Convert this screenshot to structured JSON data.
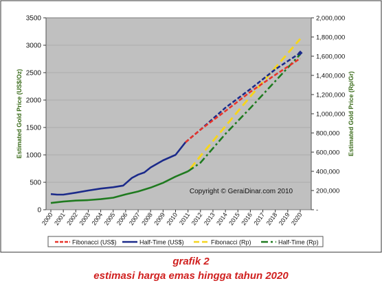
{
  "chart_data": {
    "type": "line",
    "title": "",
    "ylabel_left": "Estimated Gold Price (US$/Oz)",
    "ylabel_right": "Estimated Gold Price (Rp/Gr)",
    "ylim_left": [
      0,
      3500
    ],
    "ylim_right": [
      0,
      2000000
    ],
    "x_ticks": [
      "2000",
      "2001",
      "2002",
      "2003",
      "2004",
      "2005",
      "2006",
      "2007",
      "2008",
      "2009",
      "2010",
      "2011",
      "2012",
      "2013",
      "2014",
      "2015",
      "2016",
      "2017",
      "2018",
      "2019",
      "2020"
    ],
    "y_left_ticks": [
      "0",
      "500",
      "1000",
      "1500",
      "2000",
      "2500",
      "3000",
      "3500"
    ],
    "y_right_ticks": [
      "-",
      "200,000",
      "400,000",
      "600,000",
      "800,000",
      "1,000,000",
      "1,200,000",
      "1,400,000",
      "1,600,000",
      "1,800,000",
      "2,000,000"
    ],
    "annotation": "Copyright © GeraiDinar.com 2010",
    "legend_position": "bottom",
    "colors": {
      "plot_bg": "#c0c0c0",
      "fib_usd": "#e8332a",
      "half_usd": "#1b2a8a",
      "fib_rp": "#f5d51e",
      "half_rp": "#1f7a1f",
      "axis_label": "#3a6b1a"
    },
    "series": [
      {
        "name": "Fibonacci (US$)",
        "axis": "left",
        "style": "dashed",
        "x": [
          2010.8,
          2012,
          2014,
          2016,
          2018,
          2020
        ],
        "y": [
          1230,
          1460,
          1800,
          2150,
          2460,
          2760
        ]
      },
      {
        "name": "Half-Time (US$)",
        "axis": "left",
        "style": "solid-then-dashed",
        "x": [
          2000,
          2000.5,
          2001,
          2002,
          2003,
          2004,
          2005,
          2005.8,
          2006.5,
          2007,
          2007.5,
          2008,
          2009,
          2010,
          2010.8,
          2012,
          2014,
          2016,
          2018,
          2020
        ],
        "y": [
          285,
          275,
          275,
          310,
          350,
          385,
          410,
          440,
          580,
          640,
          680,
          770,
          900,
          1000,
          1230,
          1460,
          1860,
          2200,
          2560,
          2860
        ]
      },
      {
        "name": "Fibonacci (Rp)",
        "axis": "right",
        "style": "dashed",
        "x": [
          2011.2,
          2012,
          2014,
          2016,
          2018,
          2020
        ],
        "y": [
          430000,
          560000,
          870000,
          1180000,
          1480000,
          1780000
        ]
      },
      {
        "name": "Half-Time (Rp)",
        "axis": "right",
        "style": "solid-then-dashed",
        "x": [
          2000,
          2001,
          2002,
          2003,
          2004,
          2005,
          2006,
          2007,
          2008,
          2009,
          2010,
          2011,
          2012,
          2014,
          2016,
          2018,
          2020
        ],
        "y": [
          70000,
          85000,
          95000,
          100000,
          110000,
          125000,
          160000,
          190000,
          230000,
          280000,
          345000,
          400000,
          490000,
          790000,
          1060000,
          1340000,
          1620000
        ]
      }
    ]
  },
  "caption": {
    "line1": "grafik 2",
    "line2": "estimasi harga emas hingga tahun 2020"
  }
}
